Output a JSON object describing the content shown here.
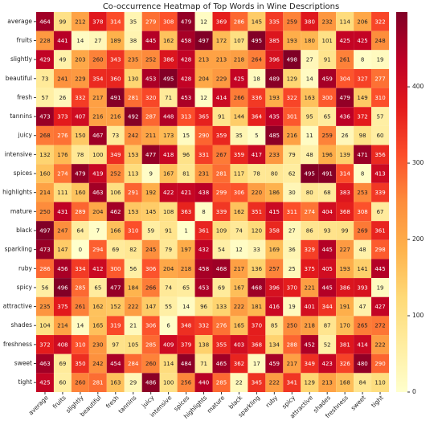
{
  "chart_data": {
    "type": "heatmap",
    "title": "Co-occurrence Heatmap of Top Words in Wine Descriptions",
    "x_categories": [
      "average",
      "fruits",
      "slightly",
      "beautiful",
      "fresh",
      "tannins",
      "juicy",
      "intensive",
      "spices",
      "highlights",
      "mature",
      "black",
      "sparkling",
      "ruby",
      "spicy",
      "attractive",
      "shades",
      "freshness",
      "sweet",
      "tight"
    ],
    "y_categories": [
      "average",
      "fruits",
      "slightly",
      "beautiful",
      "fresh",
      "tannins",
      "juicy",
      "intensive",
      "spices",
      "highlights",
      "mature",
      "black",
      "sparkling",
      "ruby",
      "spicy",
      "attractive",
      "shades",
      "freshness",
      "sweet",
      "tight"
    ],
    "values": [
      [
        464,
        99,
        212,
        378,
        314,
        35,
        279,
        308,
        479,
        12,
        369,
        286,
        145,
        335,
        259,
        380,
        232,
        114,
        206,
        322
      ],
      [
        228,
        441,
        14,
        27,
        189,
        38,
        445,
        162,
        458,
        497,
        172,
        107,
        495,
        385,
        193,
        180,
        101,
        425,
        425,
        248
      ],
      [
        429,
        49,
        203,
        260,
        343,
        235,
        252,
        386,
        428,
        213,
        213,
        218,
        264,
        396,
        498,
        27,
        91,
        261,
        8,
        19
      ],
      [
        73,
        241,
        229,
        354,
        360,
        130,
        453,
        495,
        428,
        204,
        229,
        425,
        18,
        489,
        129,
        14,
        459,
        304,
        327,
        277
      ],
      [
        57,
        26,
        332,
        217,
        491,
        281,
        320,
        71,
        453,
        12,
        414,
        266,
        336,
        193,
        322,
        163,
        300,
        479,
        149,
        310
      ],
      [
        473,
        373,
        407,
        216,
        216,
        492,
        287,
        448,
        313,
        365,
        91,
        144,
        364,
        435,
        301,
        95,
        65,
        436,
        372,
        57
      ],
      [
        268,
        276,
        150,
        467,
        73,
        242,
        211,
        173,
        15,
        290,
        359,
        35,
        5,
        485,
        216,
        11,
        259,
        26,
        98,
        60
      ],
      [
        132,
        176,
        78,
        100,
        349,
        153,
        477,
        418,
        96,
        331,
        267,
        359,
        417,
        233,
        79,
        48,
        196,
        139,
        471,
        356
      ],
      [
        160,
        274,
        479,
        419,
        252,
        113,
        9,
        167,
        81,
        231,
        281,
        117,
        78,
        80,
        62,
        495,
        491,
        314,
        8,
        413
      ],
      [
        214,
        111,
        160,
        463,
        106,
        291,
        192,
        422,
        421,
        438,
        299,
        306,
        220,
        186,
        30,
        80,
        68,
        383,
        253,
        339
      ],
      [
        250,
        431,
        289,
        204,
        462,
        153,
        145,
        108,
        363,
        8,
        339,
        162,
        351,
        415,
        311,
        274,
        404,
        368,
        308,
        67
      ],
      [
        497,
        247,
        64,
        7,
        166,
        310,
        59,
        91,
        1,
        361,
        109,
        74,
        120,
        358,
        27,
        86,
        93,
        99,
        269,
        361
      ],
      [
        473,
        147,
        0,
        294,
        69,
        82,
        245,
        79,
        197,
        432,
        54,
        12,
        33,
        169,
        36,
        329,
        445,
        227,
        48,
        298
      ],
      [
        286,
        456,
        334,
        412,
        300,
        56,
        306,
        204,
        218,
        458,
        468,
        217,
        136,
        257,
        25,
        375,
        405,
        193,
        141,
        445
      ],
      [
        56,
        496,
        285,
        65,
        477,
        184,
        266,
        74,
        65,
        453,
        69,
        167,
        468,
        396,
        370,
        221,
        445,
        386,
        393,
        19
      ],
      [
        235,
        375,
        261,
        162,
        152,
        222,
        147,
        55,
        14,
        96,
        133,
        222,
        181,
        416,
        19,
        401,
        344,
        191,
        47,
        427
      ],
      [
        104,
        214,
        14,
        165,
        319,
        21,
        306,
        6,
        348,
        332,
        276,
        165,
        370,
        85,
        250,
        218,
        87,
        170,
        265,
        272
      ],
      [
        372,
        408,
        310,
        230,
        97,
        105,
        285,
        409,
        379,
        138,
        355,
        403,
        368,
        134,
        288,
        452,
        52,
        381,
        414,
        222
      ],
      [
        463,
        69,
        350,
        242,
        454,
        284,
        260,
        114,
        484,
        71,
        465,
        362,
        17,
        459,
        217,
        349,
        423,
        326,
        480,
        290
      ],
      [
        425,
        60,
        260,
        281,
        163,
        29,
        486,
        100,
        256,
        440,
        285,
        22,
        345,
        222,
        341,
        129,
        213,
        168,
        84,
        110
      ]
    ],
    "colormap": [
      "#ffffcc",
      "#ffeda0",
      "#fed976",
      "#feb24c",
      "#fd8d3c",
      "#fc4e2a",
      "#e31a1c",
      "#bd0026",
      "#800026"
    ],
    "colorbar_lim": [
      0,
      498
    ],
    "colorbar_ticks": [
      0,
      100,
      200,
      300,
      400
    ]
  }
}
